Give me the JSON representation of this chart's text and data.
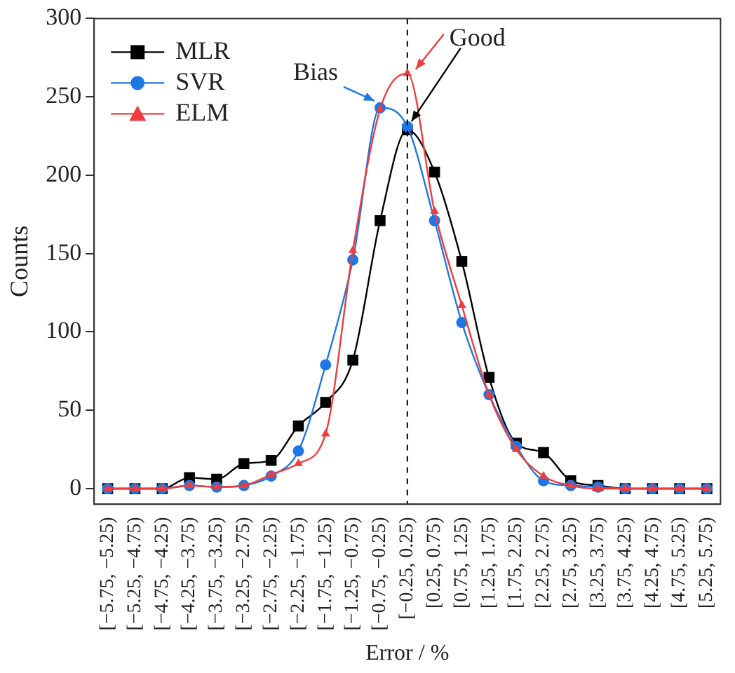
{
  "chart_data": {
    "type": "line",
    "xlabel": "Error / %",
    "ylabel": "Counts",
    "categories": [
      "[−5.75, −5.25)",
      "[−5.25, −4.75)",
      "[−4.75, −4.25)",
      "[−4.25, −3.75)",
      "[−3.75, −3.25)",
      "[−3.25, −2.75)",
      "[−2.75, −2.25)",
      "[−2.25, −1.75)",
      "[−1.75, −1.25)",
      "[−1.25, −0.75)",
      "[−0.75, −0.25)",
      "[−0.25, 0.25)",
      "[0.25, 0.75)",
      "[0.75, 1.25)",
      "[1.25, 1.75)",
      "[1.75, 2.25)",
      "[2.25, 2.75)",
      "[2.75, 3.25)",
      "[3.25, 3.75)",
      "[3.75, 4.25)",
      "[4.25, 4.75)",
      "[4.75, 5.25)",
      "[5.25, 5.75)"
    ],
    "series": [
      {
        "name": "MLR",
        "color": "#000000",
        "marker": "square",
        "values": [
          0,
          0,
          0,
          7,
          6,
          16,
          18,
          40,
          55,
          82,
          171,
          229,
          202,
          145,
          71,
          29,
          23,
          5,
          2,
          0,
          0,
          0,
          0
        ]
      },
      {
        "name": "SVR",
        "color": "#1f77e6",
        "marker": "circle",
        "values": [
          0,
          0,
          0,
          2,
          1,
          2,
          8,
          24,
          79,
          146,
          243,
          231,
          171,
          106,
          60,
          27,
          5,
          2,
          1,
          0,
          0,
          0,
          0
        ]
      },
      {
        "name": "ELM",
        "color": "#f03c3c",
        "marker": "triangle",
        "values": [
          0,
          0,
          0,
          2,
          1,
          2,
          9,
          16,
          35,
          152,
          242,
          265,
          177,
          117,
          60,
          25,
          8,
          2,
          0,
          0,
          0,
          0,
          0
        ]
      }
    ],
    "ylim": [
      -10,
      300
    ],
    "yticks": [
      0,
      50,
      100,
      150,
      200,
      250,
      300
    ],
    "grid": false,
    "legend": "top left",
    "ref_lines": [
      {
        "axis": "x",
        "value": "[−0.25, 0.25)",
        "line_style": "dashed",
        "color": "#000000"
      }
    ],
    "annotations": [
      {
        "text": "Bias",
        "x": "[−0.75, −0.25)",
        "y": 243
      },
      {
        "text": "Good",
        "x": "[−0.25, 0.25)",
        "y": 265
      }
    ]
  }
}
